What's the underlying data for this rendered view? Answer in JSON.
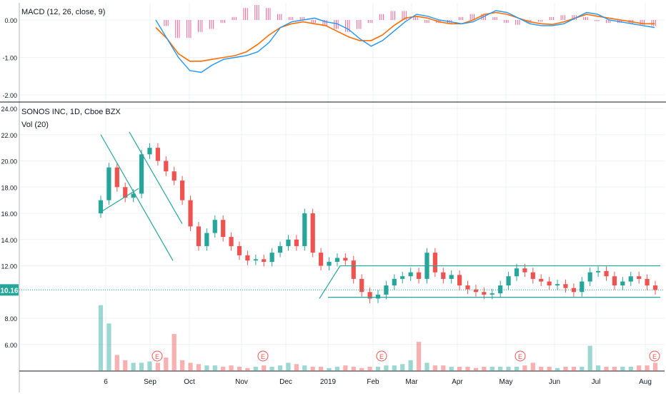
{
  "macd_pane": {
    "label": "MACD (12, 26, close, 9)",
    "y_ticks": [
      "0.00",
      "-1.00",
      "-2.00"
    ]
  },
  "price_pane": {
    "title": "SONOS INC, 1D, Cboe BZX",
    "volume_label": "Vol (20)",
    "y_ticks": [
      "24.00",
      "22.00",
      "20.00",
      "18.00",
      "16.00",
      "14.00",
      "12.00",
      "8.00",
      "6.00"
    ],
    "last_price": "10.16",
    "earnings_marker": "E"
  },
  "x_axis": {
    "ticks": [
      "6",
      "Sep",
      "Oct",
      "Nov",
      "Dec",
      "2019",
      "Feb",
      "Mar",
      "Apr",
      "May",
      "Jun",
      "Jul",
      "Aug"
    ]
  },
  "colors": {
    "up": "#26a69a",
    "down": "#ef5350",
    "macd_line": "#2196f3",
    "signal_line": "#ff6d00",
    "histogram": "#e91e63",
    "trendline": "#26a69a",
    "grid": "#eef0f3",
    "last_price_badge": "#26a69a"
  },
  "chart_data": [
    {
      "type": "line",
      "name_ref": "macd",
      "x_start": "2018-08-02",
      "x_end": "2019-08-08",
      "ylim": [
        -2.0,
        0.5
      ],
      "series": [
        {
          "values": [
            0.0,
            -0.5,
            -1.0,
            -1.35,
            -1.4,
            -1.2,
            -1.05,
            -1.0,
            -0.95,
            -0.85,
            -0.6,
            -0.2,
            -0.05,
            0.0,
            0.05,
            -0.05,
            -0.1,
            -0.25,
            -0.5,
            -0.7,
            -0.55,
            -0.3,
            -0.05,
            0.15,
            0.1,
            0.0,
            -0.05,
            -0.1,
            -0.05,
            0.1,
            0.25,
            0.2,
            0.05,
            -0.1,
            -0.15,
            -0.15,
            -0.1,
            0.05,
            0.2,
            0.15,
            0.0,
            -0.05,
            -0.1,
            -0.15,
            -0.2
          ]
        },
        {
          "values": [
            -0.2,
            -0.5,
            -0.9,
            -1.1,
            -1.1,
            -1.05,
            -1.0,
            -0.95,
            -0.85,
            -0.65,
            -0.4,
            -0.2,
            -0.1,
            -0.05,
            -0.1,
            -0.15,
            -0.3,
            -0.45,
            -0.55,
            -0.55,
            -0.4,
            -0.15,
            0.05,
            0.1,
            0.05,
            -0.05,
            -0.1,
            -0.1,
            0.0,
            0.15,
            0.2,
            0.15,
            0.05,
            -0.05,
            -0.1,
            -0.12,
            -0.05,
            0.05,
            0.15,
            0.1,
            0.05,
            0.0,
            -0.05,
            -0.1,
            -0.1
          ]
        },
        {
          "values": [
            0.0,
            -0.1,
            -0.3,
            -0.3,
            -0.2,
            -0.15,
            -0.05,
            0.05,
            0.2,
            0.25,
            0.2,
            0.1,
            0.05,
            0.05,
            -0.05,
            -0.1,
            -0.15,
            -0.2,
            -0.15,
            -0.05,
            0.1,
            0.15,
            0.15,
            0.05,
            -0.05,
            -0.05,
            -0.05,
            0.05,
            0.1,
            0.1,
            0.05,
            -0.05,
            -0.08,
            -0.05,
            -0.03,
            0.05,
            0.08,
            0.08,
            0.05,
            -0.02,
            -0.05,
            -0.05,
            -0.06,
            -0.08,
            -0.1
          ]
        }
      ]
    },
    {
      "type": "candlestick",
      "x_start": "2018-08-02",
      "x_end": "2019-08-08",
      "ylim": [
        4.0,
        24.0
      ],
      "close": [
        17.0,
        19.5,
        18.0,
        17.2,
        17.5,
        20.5,
        21.0,
        20.0,
        19.2,
        18.5,
        17.0,
        15.0,
        13.5,
        14.5,
        15.5,
        14.2,
        13.5,
        12.8,
        12.4,
        12.5,
        12.3,
        13.0,
        13.5,
        14.0,
        13.5,
        16.0,
        13.0,
        12.0,
        12.3,
        12.6,
        12.4,
        11.0,
        10.0,
        9.5,
        9.8,
        10.5,
        11.0,
        11.2,
        11.5,
        11.0,
        13.0,
        11.5,
        11.0,
        11.3,
        10.5,
        10.2,
        10.0,
        9.8,
        9.9,
        10.5,
        11.2,
        11.8,
        11.5,
        11.0,
        10.8,
        10.5,
        10.6,
        10.3,
        10.0,
        10.8,
        11.5,
        11.6,
        11.2,
        10.5,
        10.8,
        11.2,
        11.0,
        10.5,
        10.16
      ],
      "volume": [
        9.0,
        7.6,
        5.2,
        4.8,
        4.6,
        4.6,
        4.7,
        4.6,
        5.0,
        6.8,
        4.8,
        4.6,
        4.5,
        4.4,
        4.4,
        4.3,
        4.4,
        4.3,
        4.2,
        4.3,
        4.4,
        4.3,
        4.4,
        4.6,
        4.5,
        4.4,
        4.3,
        4.3,
        4.2,
        4.3,
        4.4,
        4.3,
        4.2,
        4.3,
        4.3,
        4.4,
        4.4,
        4.5,
        4.8,
        6.2,
        4.6,
        4.4,
        4.4,
        4.3,
        4.3,
        4.3,
        4.2,
        4.3,
        4.3,
        4.3,
        4.3,
        4.3,
        4.4,
        4.6,
        4.3,
        4.3,
        4.2,
        4.3,
        4.3,
        4.3,
        5.9,
        4.4,
        4.3,
        4.3,
        4.3,
        4.3,
        4.4,
        4.4,
        4.6
      ]
    }
  ]
}
